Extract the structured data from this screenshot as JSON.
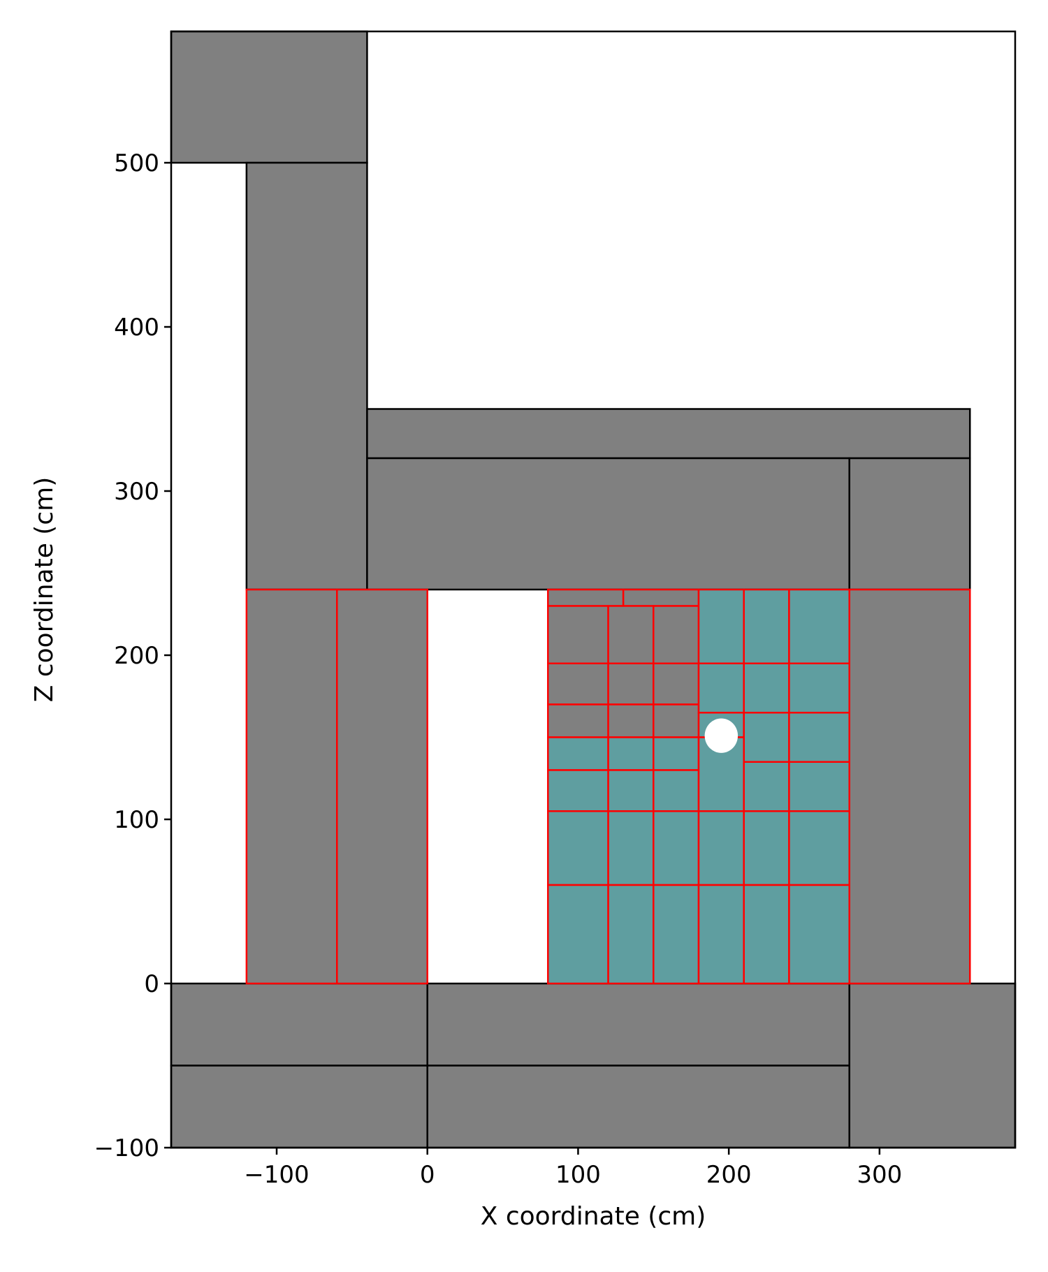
{
  "chart_data": {
    "type": "diagram",
    "xlabel": "X coordinate (cm)",
    "ylabel": "Z coordinate (cm)",
    "xlim": [
      -170,
      390
    ],
    "ylim": [
      -100,
      580
    ],
    "xticks": [
      {
        "value": -100,
        "label": "−100"
      },
      {
        "value": 0,
        "label": "0"
      },
      {
        "value": 100,
        "label": "100"
      },
      {
        "value": 200,
        "label": "200"
      },
      {
        "value": 300,
        "label": "300"
      }
    ],
    "yticks": [
      {
        "value": -100,
        "label": "−100"
      },
      {
        "value": 0,
        "label": "0"
      },
      {
        "value": 100,
        "label": "100"
      },
      {
        "value": 200,
        "label": "200"
      },
      {
        "value": 300,
        "label": "300"
      },
      {
        "value": 400,
        "label": "400"
      },
      {
        "value": 500,
        "label": "500"
      }
    ],
    "colors": {
      "gray": "#808080",
      "teal": "#5f9ea0",
      "black_edge": "#000000",
      "red_edge": "#ff0000",
      "marker": "#ffffff"
    },
    "black_blocks": [
      {
        "x0": -170,
        "x1": -40,
        "z0": 500,
        "z1": 580,
        "fill": "gray"
      },
      {
        "x0": -120,
        "x1": -40,
        "z0": 240,
        "z1": 500,
        "fill": "gray"
      },
      {
        "x0": -40,
        "x1": 360,
        "z0": 320,
        "z1": 350,
        "fill": "gray"
      },
      {
        "x0": -40,
        "x1": 280,
        "z0": 240,
        "z1": 320,
        "fill": "gray"
      },
      {
        "x0": 280,
        "x1": 360,
        "z0": 240,
        "z1": 320,
        "fill": "gray"
      },
      {
        "x0": -170,
        "x1": 0,
        "z0": -50,
        "z1": 0,
        "fill": "gray"
      },
      {
        "x0": -170,
        "x1": 0,
        "z0": -100,
        "z1": -50,
        "fill": "gray"
      },
      {
        "x0": 0,
        "x1": 280,
        "z0": -50,
        "z1": 0,
        "fill": "gray"
      },
      {
        "x0": 0,
        "x1": 280,
        "z0": -100,
        "z1": -50,
        "fill": "gray"
      },
      {
        "x0": 280,
        "x1": 390,
        "z0": -100,
        "z1": 0,
        "fill": "gray"
      }
    ],
    "red_blocks": [
      {
        "x0": -120,
        "x1": -60,
        "z0": 0,
        "z1": 240,
        "fill": "gray"
      },
      {
        "x0": -60,
        "x1": 0,
        "z0": 0,
        "z1": 240,
        "fill": "gray"
      },
      {
        "x0": 280,
        "x1": 360,
        "z0": 0,
        "z1": 240,
        "fill": "gray"
      },
      {
        "x0": 80,
        "x1": 130,
        "z0": 230,
        "z1": 240,
        "fill": "gray"
      },
      {
        "x0": 130,
        "x1": 180,
        "z0": 230,
        "z1": 240,
        "fill": "gray"
      },
      {
        "x0": 80,
        "x1": 120,
        "z0": 195,
        "z1": 230,
        "fill": "gray"
      },
      {
        "x0": 120,
        "x1": 150,
        "z0": 195,
        "z1": 230,
        "fill": "gray"
      },
      {
        "x0": 150,
        "x1": 180,
        "z0": 195,
        "z1": 230,
        "fill": "gray"
      },
      {
        "x0": 80,
        "x1": 120,
        "z0": 170,
        "z1": 195,
        "fill": "gray"
      },
      {
        "x0": 120,
        "x1": 150,
        "z0": 170,
        "z1": 195,
        "fill": "gray"
      },
      {
        "x0": 150,
        "x1": 180,
        "z0": 170,
        "z1": 195,
        "fill": "gray"
      },
      {
        "x0": 80,
        "x1": 120,
        "z0": 150,
        "z1": 170,
        "fill": "gray"
      },
      {
        "x0": 120,
        "x1": 150,
        "z0": 150,
        "z1": 170,
        "fill": "gray"
      },
      {
        "x0": 150,
        "x1": 180,
        "z0": 150,
        "z1": 170,
        "fill": "gray"
      },
      {
        "x0": 80,
        "x1": 120,
        "z0": 130,
        "z1": 150,
        "fill": "teal"
      },
      {
        "x0": 120,
        "x1": 150,
        "z0": 130,
        "z1": 150,
        "fill": "teal"
      },
      {
        "x0": 150,
        "x1": 180,
        "z0": 130,
        "z1": 150,
        "fill": "teal"
      },
      {
        "x0": 80,
        "x1": 120,
        "z0": 105,
        "z1": 130,
        "fill": "teal"
      },
      {
        "x0": 120,
        "x1": 150,
        "z0": 105,
        "z1": 130,
        "fill": "teal"
      },
      {
        "x0": 150,
        "x1": 180,
        "z0": 105,
        "z1": 130,
        "fill": "teal"
      },
      {
        "x0": 180,
        "x1": 210,
        "z0": 195,
        "z1": 240,
        "fill": "teal"
      },
      {
        "x0": 210,
        "x1": 240,
        "z0": 195,
        "z1": 240,
        "fill": "teal"
      },
      {
        "x0": 240,
        "x1": 280,
        "z0": 195,
        "z1": 240,
        "fill": "teal"
      },
      {
        "x0": 180,
        "x1": 210,
        "z0": 165,
        "z1": 195,
        "fill": "teal"
      },
      {
        "x0": 210,
        "x1": 240,
        "z0": 165,
        "z1": 195,
        "fill": "teal"
      },
      {
        "x0": 240,
        "x1": 280,
        "z0": 165,
        "z1": 195,
        "fill": "teal"
      },
      {
        "x0": 180,
        "x1": 210,
        "z0": 150,
        "z1": 165,
        "fill": "teal"
      },
      {
        "x0": 210,
        "x1": 240,
        "z0": 135,
        "z1": 165,
        "fill": "teal"
      },
      {
        "x0": 240,
        "x1": 280,
        "z0": 135,
        "z1": 165,
        "fill": "teal"
      },
      {
        "x0": 180,
        "x1": 210,
        "z0": 105,
        "z1": 150,
        "fill": "teal"
      },
      {
        "x0": 210,
        "x1": 240,
        "z0": 105,
        "z1": 135,
        "fill": "teal"
      },
      {
        "x0": 240,
        "x1": 280,
        "z0": 105,
        "z1": 135,
        "fill": "teal"
      },
      {
        "x0": 80,
        "x1": 120,
        "z0": 60,
        "z1": 105,
        "fill": "teal"
      },
      {
        "x0": 120,
        "x1": 150,
        "z0": 60,
        "z1": 105,
        "fill": "teal"
      },
      {
        "x0": 150,
        "x1": 180,
        "z0": 60,
        "z1": 105,
        "fill": "teal"
      },
      {
        "x0": 180,
        "x1": 210,
        "z0": 60,
        "z1": 105,
        "fill": "teal"
      },
      {
        "x0": 210,
        "x1": 240,
        "z0": 60,
        "z1": 105,
        "fill": "teal"
      },
      {
        "x0": 240,
        "x1": 280,
        "z0": 60,
        "z1": 105,
        "fill": "teal"
      },
      {
        "x0": 80,
        "x1": 120,
        "z0": 0,
        "z1": 60,
        "fill": "teal"
      },
      {
        "x0": 120,
        "x1": 150,
        "z0": 0,
        "z1": 60,
        "fill": "teal"
      },
      {
        "x0": 150,
        "x1": 180,
        "z0": 0,
        "z1": 60,
        "fill": "teal"
      },
      {
        "x0": 180,
        "x1": 210,
        "z0": 0,
        "z1": 60,
        "fill": "teal"
      },
      {
        "x0": 210,
        "x1": 240,
        "z0": 0,
        "z1": 60,
        "fill": "teal"
      },
      {
        "x0": 240,
        "x1": 280,
        "z0": 0,
        "z1": 60,
        "fill": "teal"
      }
    ],
    "marker": {
      "x": 195,
      "z": 151,
      "rx": 11,
      "rz": 10.5
    }
  }
}
